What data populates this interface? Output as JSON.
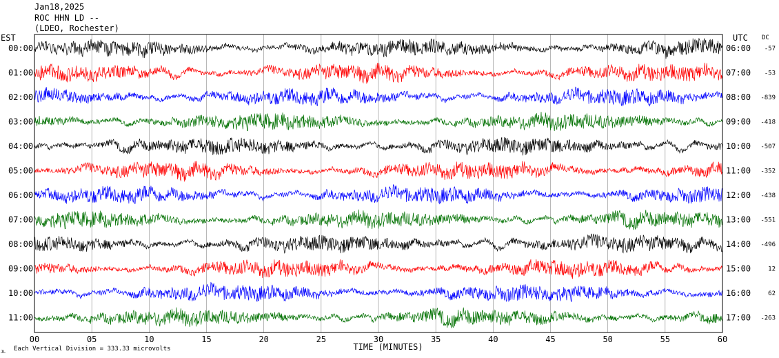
{
  "header": {
    "date": "Jan18,2025",
    "station": "ROC HHN LD --",
    "location": "(LDEO, Rochester)"
  },
  "labels": {
    "left_tz": "EST",
    "right_tz": "UTC",
    "dc": "DC",
    "xlabel": "TIME (MINUTES)",
    "footer": "Each Vertical Division = 333.33 microvolts",
    "corner_mark": "JL"
  },
  "chart_data": {
    "type": "line",
    "xlim": [
      0,
      60
    ],
    "x_ticks": [
      "00",
      "05",
      "10",
      "15",
      "20",
      "25",
      "30",
      "35",
      "40",
      "45",
      "50",
      "55",
      "60"
    ],
    "rows": [
      {
        "est": "00:00",
        "utc": "06:00",
        "dc": "-57",
        "color": "#000000"
      },
      {
        "est": "01:00",
        "utc": "07:00",
        "dc": "-53",
        "color": "#ff0000"
      },
      {
        "est": "02:00",
        "utc": "08:00",
        "dc": "-839",
        "color": "#0000ff"
      },
      {
        "est": "03:00",
        "utc": "09:00",
        "dc": "-418",
        "color": "#007000"
      },
      {
        "est": "04:00",
        "utc": "10:00",
        "dc": "-507",
        "color": "#000000"
      },
      {
        "est": "05:00",
        "utc": "11:00",
        "dc": "-352",
        "color": "#ff0000"
      },
      {
        "est": "06:00",
        "utc": "12:00",
        "dc": "-438",
        "color": "#0000ff"
      },
      {
        "est": "07:00",
        "utc": "13:00",
        "dc": "-551",
        "color": "#007000"
      },
      {
        "est": "08:00",
        "utc": "14:00",
        "dc": "-496",
        "color": "#000000"
      },
      {
        "est": "09:00",
        "utc": "15:00",
        "dc": "12",
        "color": "#ff0000"
      },
      {
        "est": "10:00",
        "utc": "16:00",
        "dc": "62",
        "color": "#0000ff"
      },
      {
        "est": "11:00",
        "utc": "17:00",
        "dc": "-263",
        "color": "#007000"
      }
    ]
  }
}
